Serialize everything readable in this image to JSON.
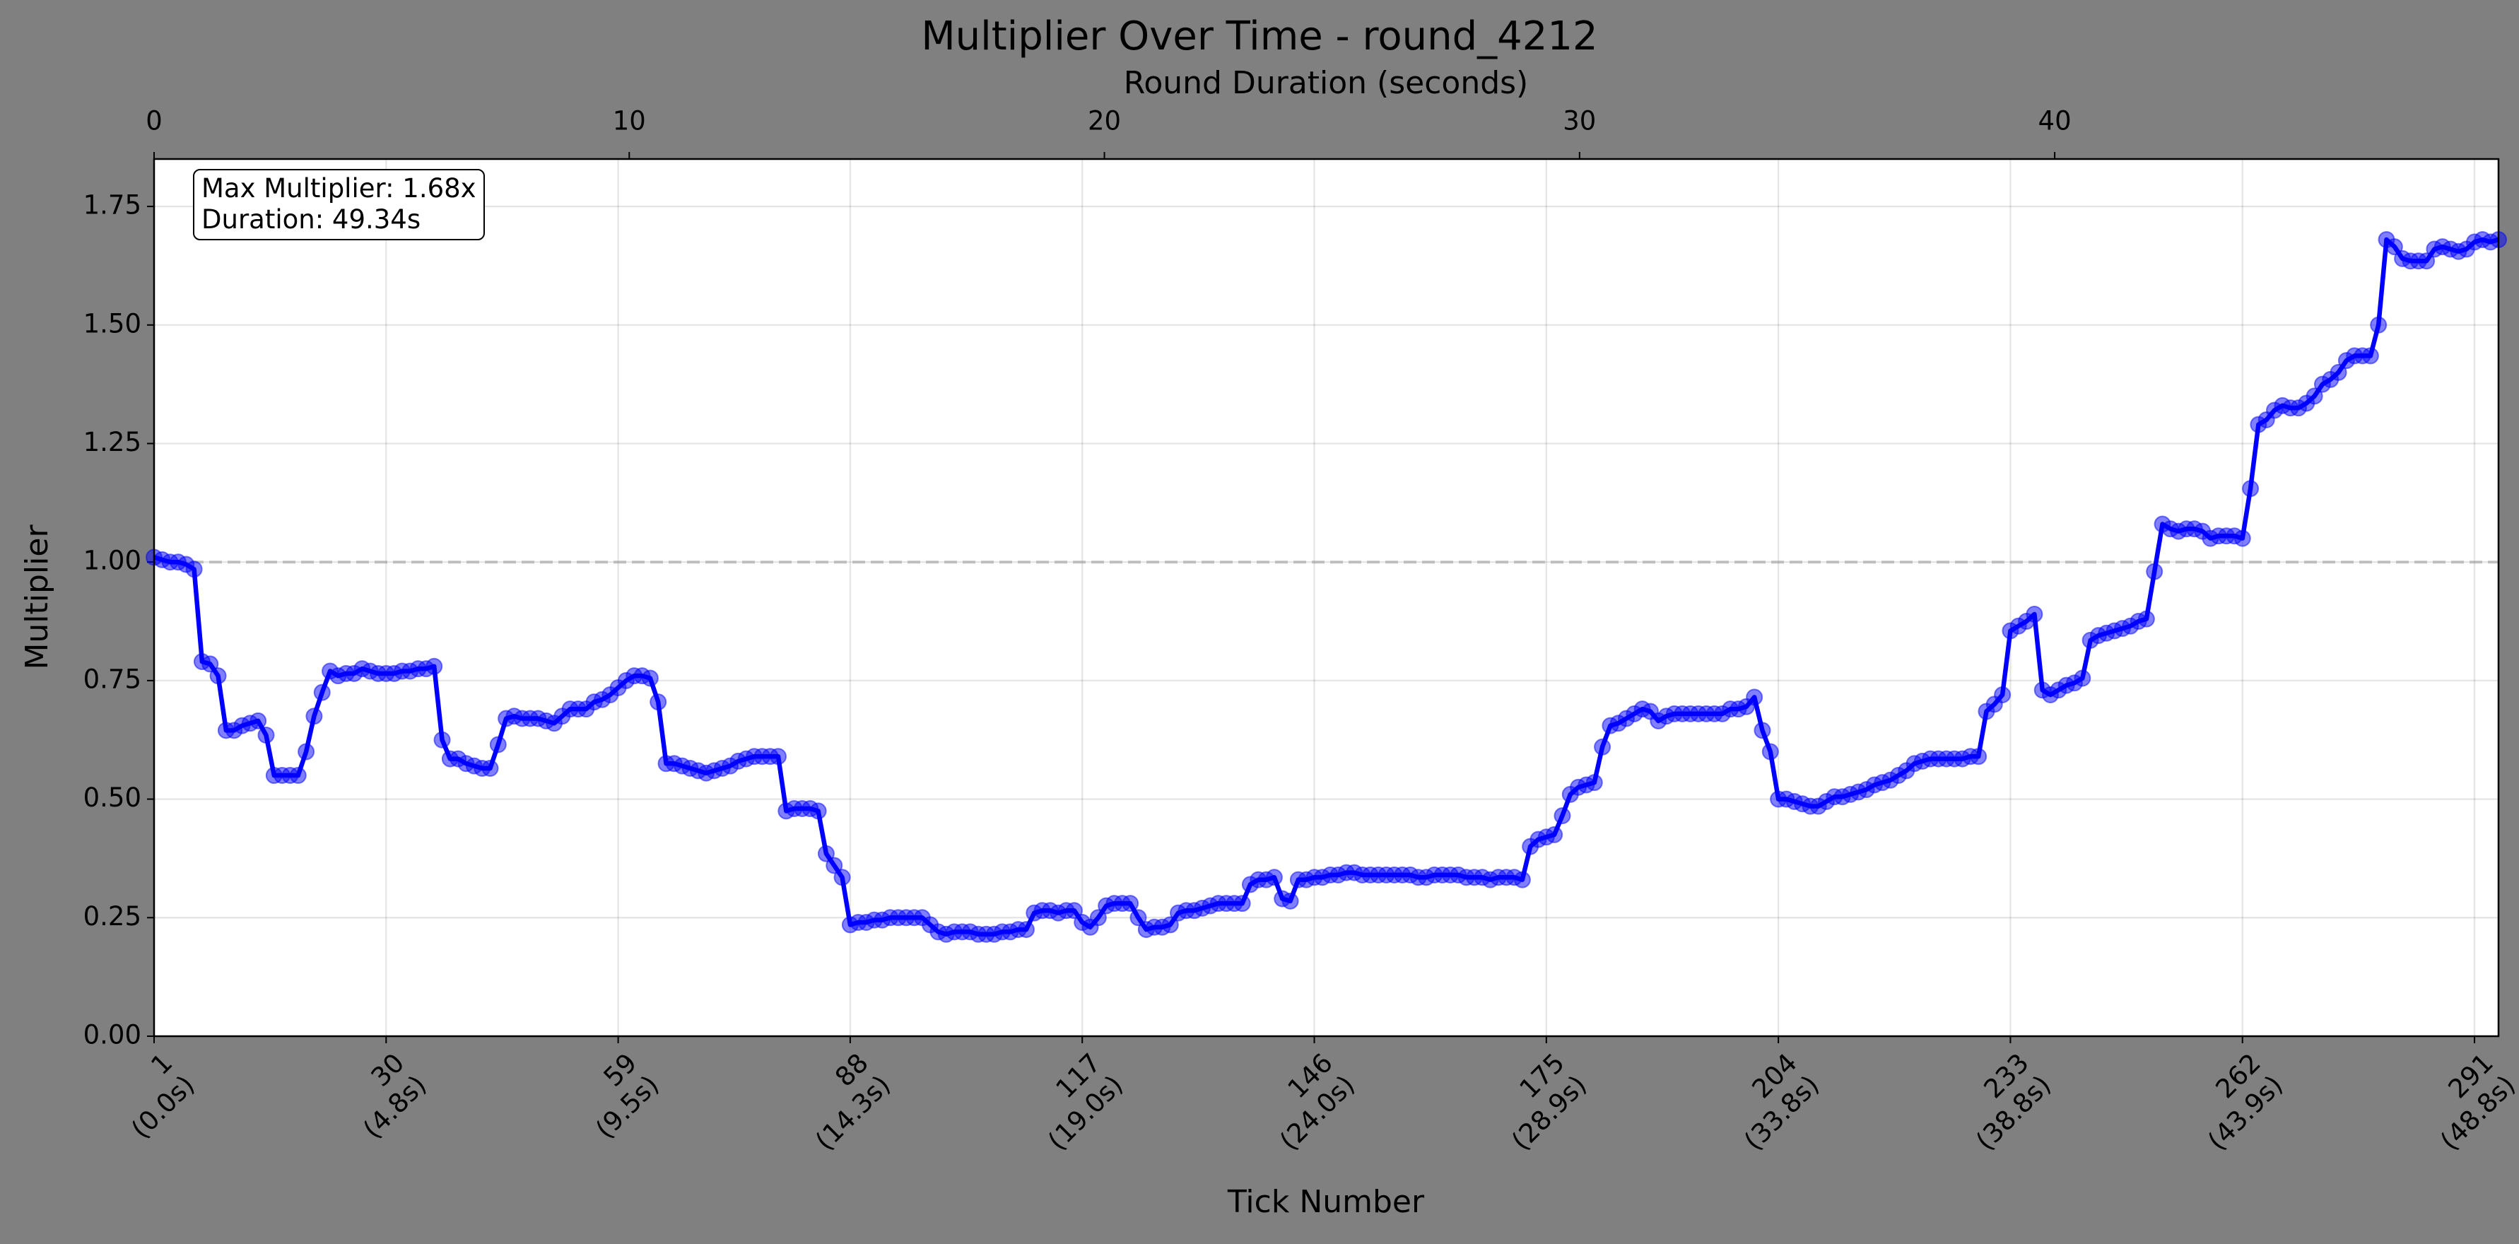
{
  "chart_data": {
    "type": "line",
    "title": "Multiplier Over Time - round_4212",
    "xlabel": "Tick Number",
    "ylabel": "Multiplier",
    "x2label": "Round Duration (seconds)",
    "annotation": "Max Multiplier: 1.68x\nDuration: 49.34s",
    "color": "#0000ff",
    "reference_line": 1.0,
    "grid": true,
    "xlim": [
      1,
      294
    ],
    "x2lim": [
      0,
      49.34
    ],
    "ylim": [
      0,
      1.85
    ],
    "xticks": [
      {
        "value": 1,
        "label": "1\n(0.0s)"
      },
      {
        "value": 30,
        "label": "30\n(4.8s)"
      },
      {
        "value": 59,
        "label": "59\n(9.5s)"
      },
      {
        "value": 88,
        "label": "88\n(14.3s)"
      },
      {
        "value": 117,
        "label": "117\n(19.0s)"
      },
      {
        "value": 146,
        "label": "146\n(24.0s)"
      },
      {
        "value": 175,
        "label": "175\n(28.9s)"
      },
      {
        "value": 204,
        "label": "204\n(33.8s)"
      },
      {
        "value": 233,
        "label": "233\n(38.8s)"
      },
      {
        "value": 262,
        "label": "262\n(43.9s)"
      },
      {
        "value": 291,
        "label": "291\n(48.8s)"
      }
    ],
    "x2ticks": [
      0,
      10,
      20,
      30,
      40
    ],
    "yticks": [
      {
        "value": 0,
        "label": "0.00"
      },
      0.25,
      {
        "value": 0.5,
        "label": "0.50"
      },
      0.75,
      {
        "value": 1,
        "label": "1.00"
      },
      1.25,
      {
        "value": 1.5,
        "label": "1.50"
      },
      1.75
    ],
    "x": [
      1,
      2,
      3,
      4,
      5,
      6,
      7,
      8,
      9,
      10,
      11,
      12,
      13,
      14,
      15,
      16,
      17,
      18,
      19,
      20,
      21,
      22,
      23,
      24,
      25,
      26,
      27,
      28,
      29,
      30,
      31,
      32,
      33,
      34,
      35,
      36,
      37,
      38,
      39,
      40,
      41,
      42,
      43,
      44,
      45,
      46,
      47,
      48,
      49,
      50,
      51,
      52,
      53,
      54,
      55,
      56,
      57,
      58,
      59,
      60,
      61,
      62,
      63,
      64,
      65,
      66,
      67,
      68,
      69,
      70,
      71,
      72,
      73,
      74,
      75,
      76,
      77,
      78,
      79,
      80,
      81,
      82,
      83,
      84,
      85,
      86,
      87,
      88,
      89,
      90,
      91,
      92,
      93,
      94,
      95,
      96,
      97,
      98,
      99,
      100,
      101,
      102,
      103,
      104,
      105,
      106,
      107,
      108,
      109,
      110,
      111,
      112,
      113,
      114,
      115,
      116,
      117,
      118,
      119,
      120,
      121,
      122,
      123,
      124,
      125,
      126,
      127,
      128,
      129,
      130,
      131,
      132,
      133,
      134,
      135,
      136,
      137,
      138,
      139,
      140,
      141,
      142,
      143,
      144,
      145,
      146,
      147,
      148,
      149,
      150,
      151,
      152,
      153,
      154,
      155,
      156,
      157,
      158,
      159,
      160,
      161,
      162,
      163,
      164,
      165,
      166,
      167,
      168,
      169,
      170,
      171,
      172,
      173,
      174,
      175,
      176,
      177,
      178,
      179,
      180,
      181,
      182,
      183,
      184,
      185,
      186,
      187,
      188,
      189,
      190,
      191,
      192,
      193,
      194,
      195,
      196,
      197,
      198,
      199,
      200,
      201,
      202,
      203,
      204,
      205,
      206,
      207,
      208,
      209,
      210,
      211,
      212,
      213,
      214,
      215,
      216,
      217,
      218,
      219,
      220,
      221,
      222,
      223,
      224,
      225,
      226,
      227,
      228,
      229,
      230,
      231,
      232,
      233,
      234,
      235,
      236,
      237,
      238,
      239,
      240,
      241,
      242,
      243,
      244,
      245,
      246,
      247,
      248,
      249,
      250,
      251,
      252,
      253,
      254,
      255,
      256,
      257,
      258,
      259,
      260,
      261,
      262,
      263,
      264,
      265,
      266,
      267,
      268,
      269,
      270,
      271,
      272,
      273,
      274,
      275,
      276,
      277,
      278,
      279,
      280,
      281,
      282,
      283,
      284,
      285,
      286,
      287,
      288,
      289,
      290,
      291,
      292,
      293,
      294
    ],
    "values": [
      1.01,
      1.005,
      1.0,
      1.0,
      0.995,
      0.985,
      0.79,
      0.785,
      0.76,
      0.645,
      0.645,
      0.655,
      0.66,
      0.665,
      0.635,
      0.55,
      0.55,
      0.55,
      0.55,
      0.6,
      0.675,
      0.725,
      0.77,
      0.76,
      0.765,
      0.765,
      0.775,
      0.77,
      0.765,
      0.765,
      0.765,
      0.77,
      0.77,
      0.775,
      0.775,
      0.78,
      0.625,
      0.585,
      0.585,
      0.575,
      0.57,
      0.565,
      0.565,
      0.615,
      0.67,
      0.675,
      0.67,
      0.67,
      0.67,
      0.665,
      0.66,
      0.675,
      0.69,
      0.69,
      0.69,
      0.705,
      0.71,
      0.72,
      0.735,
      0.75,
      0.76,
      0.76,
      0.755,
      0.705,
      0.575,
      0.575,
      0.57,
      0.565,
      0.56,
      0.555,
      0.56,
      0.565,
      0.57,
      0.58,
      0.585,
      0.59,
      0.59,
      0.59,
      0.59,
      0.475,
      0.48,
      0.48,
      0.48,
      0.475,
      0.385,
      0.36,
      0.335,
      0.235,
      0.24,
      0.24,
      0.245,
      0.245,
      0.25,
      0.25,
      0.25,
      0.25,
      0.25,
      0.235,
      0.22,
      0.215,
      0.22,
      0.22,
      0.22,
      0.215,
      0.215,
      0.215,
      0.22,
      0.22,
      0.225,
      0.225,
      0.26,
      0.265,
      0.265,
      0.26,
      0.265,
      0.265,
      0.24,
      0.23,
      0.25,
      0.275,
      0.28,
      0.28,
      0.28,
      0.25,
      0.225,
      0.23,
      0.23,
      0.235,
      0.26,
      0.265,
      0.265,
      0.27,
      0.275,
      0.28,
      0.28,
      0.28,
      0.28,
      0.32,
      0.33,
      0.33,
      0.335,
      0.29,
      0.285,
      0.33,
      0.33,
      0.335,
      0.335,
      0.34,
      0.34,
      0.345,
      0.345,
      0.34,
      0.34,
      0.34,
      0.34,
      0.34,
      0.34,
      0.34,
      0.335,
      0.335,
      0.34,
      0.34,
      0.34,
      0.34,
      0.335,
      0.335,
      0.335,
      0.33,
      0.335,
      0.335,
      0.335,
      0.33,
      0.4,
      0.415,
      0.42,
      0.425,
      0.465,
      0.51,
      0.525,
      0.53,
      0.535,
      0.61,
      0.655,
      0.66,
      0.67,
      0.68,
      0.69,
      0.685,
      0.665,
      0.675,
      0.68,
      0.68,
      0.68,
      0.68,
      0.68,
      0.68,
      0.68,
      0.69,
      0.69,
      0.695,
      0.715,
      0.645,
      0.6,
      0.5,
      0.5,
      0.495,
      0.49,
      0.485,
      0.485,
      0.495,
      0.505,
      0.505,
      0.51,
      0.515,
      0.52,
      0.53,
      0.535,
      0.54,
      0.55,
      0.56,
      0.575,
      0.58,
      0.585,
      0.585,
      0.585,
      0.585,
      0.585,
      0.59,
      0.59,
      0.685,
      0.7,
      0.72,
      0.855,
      0.865,
      0.875,
      0.89,
      0.73,
      0.72,
      0.73,
      0.74,
      0.745,
      0.755,
      0.835,
      0.845,
      0.85,
      0.855,
      0.86,
      0.865,
      0.875,
      0.88,
      0.98,
      1.08,
      1.07,
      1.065,
      1.07,
      1.07,
      1.065,
      1.05,
      1.055,
      1.055,
      1.055,
      1.05,
      1.155,
      1.29,
      1.3,
      1.32,
      1.33,
      1.325,
      1.325,
      1.335,
      1.35,
      1.375,
      1.385,
      1.4,
      1.425,
      1.435,
      1.435,
      1.435,
      1.5,
      1.68,
      1.665,
      1.64,
      1.635,
      1.635,
      1.635,
      1.66,
      1.665,
      1.66,
      1.655,
      1.66,
      1.675,
      1.68,
      1.675,
      1.68
    ]
  }
}
